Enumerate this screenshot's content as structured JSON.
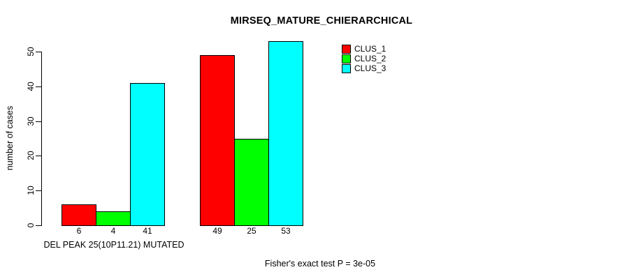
{
  "chart_data": {
    "type": "bar",
    "title": "MIRSEQ_MATURE_CHIERARCHICAL",
    "ylabel": "number of cases",
    "xlabel": "",
    "ylim": [
      0,
      50
    ],
    "yticks": [
      0,
      10,
      20,
      30,
      40,
      50
    ],
    "grid": false,
    "categories": [
      "DEL PEAK 25(10P11.21) MUTATED",
      ""
    ],
    "series": [
      {
        "name": "CLUS_1",
        "color": "#ff0000",
        "values": [
          6,
          49
        ]
      },
      {
        "name": "CLUS_2",
        "color": "#00ff00",
        "values": [
          4,
          25
        ]
      },
      {
        "name": "CLUS_3",
        "color": "#00ffff",
        "values": [
          41,
          53
        ]
      }
    ],
    "bar_value_labels": [
      [
        6,
        4,
        41
      ],
      [
        49,
        25,
        53
      ]
    ],
    "legend": {
      "position": "top-right",
      "entries": [
        {
          "label": "CLUS_1",
          "color": "#ff0000"
        },
        {
          "label": "CLUS_2",
          "color": "#00ff00"
        },
        {
          "label": "CLUS_3",
          "color": "#00ffff"
        }
      ]
    },
    "annotation": "Fisher's exact test P = 3e-05"
  }
}
